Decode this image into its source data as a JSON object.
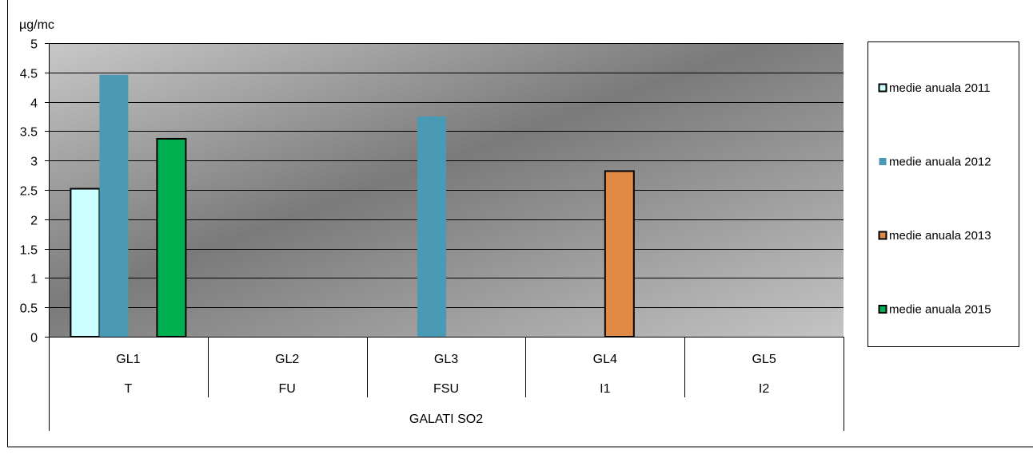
{
  "chart_data": {
    "type": "bar",
    "title": "",
    "ylabel": "µg/mc",
    "ylim": [
      0,
      5
    ],
    "yticks": [
      "0",
      "0.5",
      "1",
      "1.5",
      "2",
      "2.5",
      "3",
      "3.5",
      "4",
      "4.5",
      "5"
    ],
    "categories": [
      {
        "row1": "GL1",
        "row2": "T"
      },
      {
        "row1": "GL2",
        "row2": "FU"
      },
      {
        "row1": "GL3",
        "row2": "FSU"
      },
      {
        "row1": "GL4",
        "row2": "I1"
      },
      {
        "row1": "GL5",
        "row2": "I2"
      }
    ],
    "group_label": "GALATI SO2",
    "series": [
      {
        "name": "medie anuala 2011",
        "color": "#ccffff",
        "values": [
          2.52,
          null,
          null,
          null,
          null
        ]
      },
      {
        "name": "medie anuala 2012",
        "color": "#4a9ab5",
        "values": [
          4.46,
          null,
          3.75,
          null,
          null
        ]
      },
      {
        "name": "medie anuala 2013",
        "color": "#e08a45",
        "values": [
          null,
          null,
          null,
          2.82,
          null
        ]
      },
      {
        "name": "medie anuala 2015",
        "color": "#00b050",
        "values": [
          3.37,
          null,
          null,
          null,
          null
        ]
      }
    ],
    "grid": true,
    "legend_position": "right"
  }
}
